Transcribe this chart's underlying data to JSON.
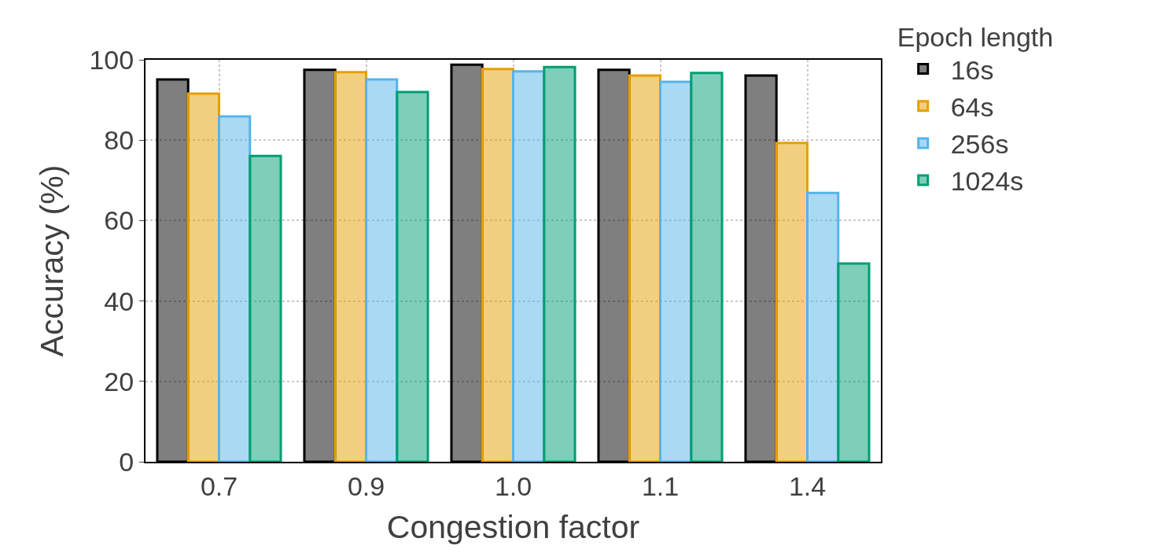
{
  "chart_data": {
    "type": "bar",
    "xlabel": "Congestion factor",
    "ylabel": "Accuracy (%)",
    "legend_title": "Epoch length",
    "categories": [
      "0.7",
      "0.9",
      "1.0",
      "1.1",
      "1.4"
    ],
    "series": [
      {
        "name": "16s",
        "color": "#000000",
        "values": [
          95.1,
          97.5,
          98.8,
          97.5,
          96.1
        ]
      },
      {
        "name": "64s",
        "color": "#e69f00",
        "values": [
          91.6,
          96.9,
          97.7,
          96.1,
          79.3
        ]
      },
      {
        "name": "256s",
        "color": "#56b4e9",
        "values": [
          85.9,
          95.1,
          97.1,
          94.5,
          66.9
        ]
      },
      {
        "name": "1024s",
        "color": "#009e73",
        "values": [
          76.1,
          92.0,
          98.2,
          96.7,
          49.3
        ]
      }
    ],
    "ylim": [
      0,
      100
    ],
    "yticks": [
      0,
      20,
      40,
      60,
      80,
      100
    ],
    "grid": true,
    "legend": "top right"
  }
}
